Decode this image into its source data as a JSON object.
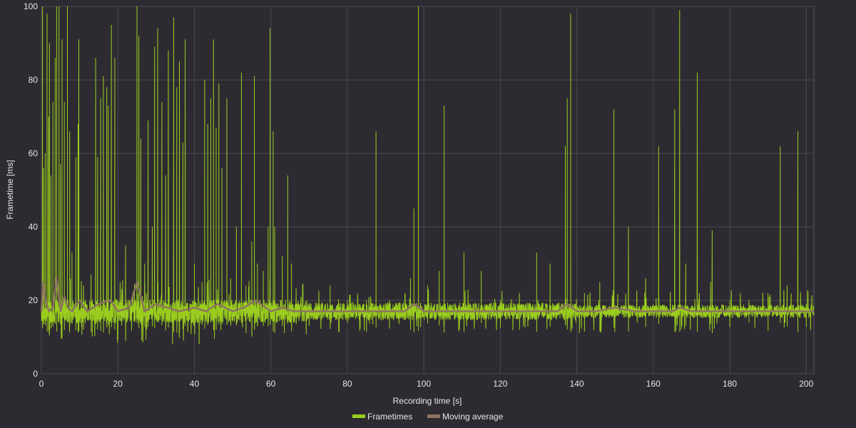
{
  "chart_data": {
    "type": "line",
    "title": "",
    "xlabel": "Recording time [s]",
    "ylabel": "Frametime [ms]",
    "xlim": [
      0,
      202
    ],
    "ylim": [
      0,
      100
    ],
    "x_ticks": [
      0,
      20,
      40,
      60,
      80,
      100,
      120,
      140,
      160,
      180,
      200
    ],
    "y_ticks": [
      0,
      20,
      40,
      60,
      80,
      100
    ],
    "grid": true,
    "legend_position": "bottom-center",
    "baseline_ms": 17,
    "series": [
      {
        "name": "Frametimes",
        "color": "#9acd1e",
        "spikes": [
          {
            "x": 0.3,
            "y": 100
          },
          {
            "x": 0.6,
            "y": 56
          },
          {
            "x": 1.0,
            "y": 60
          },
          {
            "x": 1.5,
            "y": 98
          },
          {
            "x": 1.9,
            "y": 70
          },
          {
            "x": 2.1,
            "y": 90
          },
          {
            "x": 2.5,
            "y": 54
          },
          {
            "x": 3.0,
            "y": 74
          },
          {
            "x": 3.6,
            "y": 86
          },
          {
            "x": 4.0,
            "y": 100
          },
          {
            "x": 4.6,
            "y": 100
          },
          {
            "x": 5.0,
            "y": 57
          },
          {
            "x": 5.4,
            "y": 91
          },
          {
            "x": 6.0,
            "y": 74
          },
          {
            "x": 6.8,
            "y": 100
          },
          {
            "x": 7.4,
            "y": 66
          },
          {
            "x": 8.0,
            "y": 33
          },
          {
            "x": 9.0,
            "y": 59
          },
          {
            "x": 9.6,
            "y": 68
          },
          {
            "x": 9.8,
            "y": 91
          },
          {
            "x": 11.0,
            "y": 24
          },
          {
            "x": 13.0,
            "y": 27
          },
          {
            "x": 14.2,
            "y": 86
          },
          {
            "x": 14.7,
            "y": 59
          },
          {
            "x": 15.5,
            "y": 75
          },
          {
            "x": 16.2,
            "y": 81
          },
          {
            "x": 17.1,
            "y": 78
          },
          {
            "x": 17.5,
            "y": 73
          },
          {
            "x": 18.3,
            "y": 95
          },
          {
            "x": 19.2,
            "y": 86
          },
          {
            "x": 21.0,
            "y": 23
          },
          {
            "x": 22.0,
            "y": 35
          },
          {
            "x": 25.0,
            "y": 100
          },
          {
            "x": 25.5,
            "y": 92
          },
          {
            "x": 26.0,
            "y": 64
          },
          {
            "x": 27.0,
            "y": 30
          },
          {
            "x": 27.9,
            "y": 69
          },
          {
            "x": 29.0,
            "y": 40
          },
          {
            "x": 29.6,
            "y": 89
          },
          {
            "x": 30.4,
            "y": 94
          },
          {
            "x": 31.5,
            "y": 74
          },
          {
            "x": 32.5,
            "y": 54
          },
          {
            "x": 33.2,
            "y": 88
          },
          {
            "x": 34.6,
            "y": 97
          },
          {
            "x": 35.4,
            "y": 78
          },
          {
            "x": 36.1,
            "y": 85
          },
          {
            "x": 37.0,
            "y": 63
          },
          {
            "x": 37.6,
            "y": 91
          },
          {
            "x": 40.0,
            "y": 30
          },
          {
            "x": 42.0,
            "y": 25
          },
          {
            "x": 42.7,
            "y": 80
          },
          {
            "x": 43.5,
            "y": 68
          },
          {
            "x": 44.3,
            "y": 75
          },
          {
            "x": 45.0,
            "y": 91
          },
          {
            "x": 45.7,
            "y": 67
          },
          {
            "x": 46.4,
            "y": 79
          },
          {
            "x": 47.2,
            "y": 56
          },
          {
            "x": 48.5,
            "y": 75
          },
          {
            "x": 49.5,
            "y": 26
          },
          {
            "x": 51.0,
            "y": 40
          },
          {
            "x": 52.3,
            "y": 82
          },
          {
            "x": 53.5,
            "y": 24
          },
          {
            "x": 55.0,
            "y": 36
          },
          {
            "x": 55.7,
            "y": 81
          },
          {
            "x": 56.5,
            "y": 30
          },
          {
            "x": 58.0,
            "y": 28
          },
          {
            "x": 59.3,
            "y": 40
          },
          {
            "x": 59.8,
            "y": 94
          },
          {
            "x": 60.6,
            "y": 66
          },
          {
            "x": 61.0,
            "y": 40
          },
          {
            "x": 63.0,
            "y": 32
          },
          {
            "x": 64.4,
            "y": 54
          },
          {
            "x": 65.4,
            "y": 30
          },
          {
            "x": 70.0,
            "y": 19
          },
          {
            "x": 75.5,
            "y": 24
          },
          {
            "x": 80.0,
            "y": 20
          },
          {
            "x": 85.0,
            "y": 20
          },
          {
            "x": 87.5,
            "y": 66
          },
          {
            "x": 91.0,
            "y": 20
          },
          {
            "x": 96.5,
            "y": 26
          },
          {
            "x": 97.4,
            "y": 45
          },
          {
            "x": 98.6,
            "y": 100
          },
          {
            "x": 101.0,
            "y": 24
          },
          {
            "x": 104.0,
            "y": 28
          },
          {
            "x": 105.3,
            "y": 73
          },
          {
            "x": 110.5,
            "y": 33
          },
          {
            "x": 115.0,
            "y": 28
          },
          {
            "x": 120.0,
            "y": 20
          },
          {
            "x": 125.0,
            "y": 22
          },
          {
            "x": 129.5,
            "y": 33
          },
          {
            "x": 133.0,
            "y": 30
          },
          {
            "x": 137.0,
            "y": 62
          },
          {
            "x": 137.5,
            "y": 75
          },
          {
            "x": 138.4,
            "y": 98
          },
          {
            "x": 142.0,
            "y": 22
          },
          {
            "x": 146.0,
            "y": 25
          },
          {
            "x": 149.7,
            "y": 72
          },
          {
            "x": 153.5,
            "y": 40
          },
          {
            "x": 158.0,
            "y": 26
          },
          {
            "x": 161.4,
            "y": 62
          },
          {
            "x": 165.6,
            "y": 72
          },
          {
            "x": 166.9,
            "y": 99
          },
          {
            "x": 168.5,
            "y": 30
          },
          {
            "x": 171.5,
            "y": 82
          },
          {
            "x": 175.0,
            "y": 25
          },
          {
            "x": 175.4,
            "y": 39
          },
          {
            "x": 180.0,
            "y": 20
          },
          {
            "x": 185.0,
            "y": 20
          },
          {
            "x": 190.0,
            "y": 22
          },
          {
            "x": 193.2,
            "y": 62
          },
          {
            "x": 195.0,
            "y": 24
          },
          {
            "x": 197.8,
            "y": 66
          },
          {
            "x": 200.0,
            "y": 19
          }
        ]
      },
      {
        "name": "Moving average",
        "color": "#8d7460",
        "x": [
          0,
          0.5,
          1,
          2,
          3,
          4,
          5,
          6,
          7,
          8,
          10,
          12,
          15,
          18,
          20,
          23,
          25,
          27,
          30,
          33,
          36,
          40,
          43,
          46,
          50,
          53,
          56,
          60,
          63,
          66,
          70,
          75,
          80,
          85,
          90,
          95,
          97.5,
          100,
          105,
          110,
          115,
          120,
          125,
          130,
          135,
          137.5,
          140,
          145,
          150,
          155,
          160,
          165,
          167,
          170,
          175,
          180,
          185,
          190,
          195,
          200,
          202
        ],
        "y": [
          17,
          25,
          20,
          17,
          18,
          26,
          17,
          21,
          18,
          17,
          20,
          17,
          19,
          20,
          17,
          18,
          25,
          17,
          19,
          18,
          17,
          18,
          17,
          19,
          17,
          18,
          20,
          17,
          18,
          17,
          17,
          17,
          17,
          17,
          17,
          17,
          19,
          17,
          17,
          17,
          17,
          17,
          17,
          17,
          17,
          19,
          17,
          17,
          18,
          17,
          17,
          17,
          18,
          17,
          17,
          17,
          17,
          17,
          17,
          17,
          17
        ]
      }
    ]
  }
}
